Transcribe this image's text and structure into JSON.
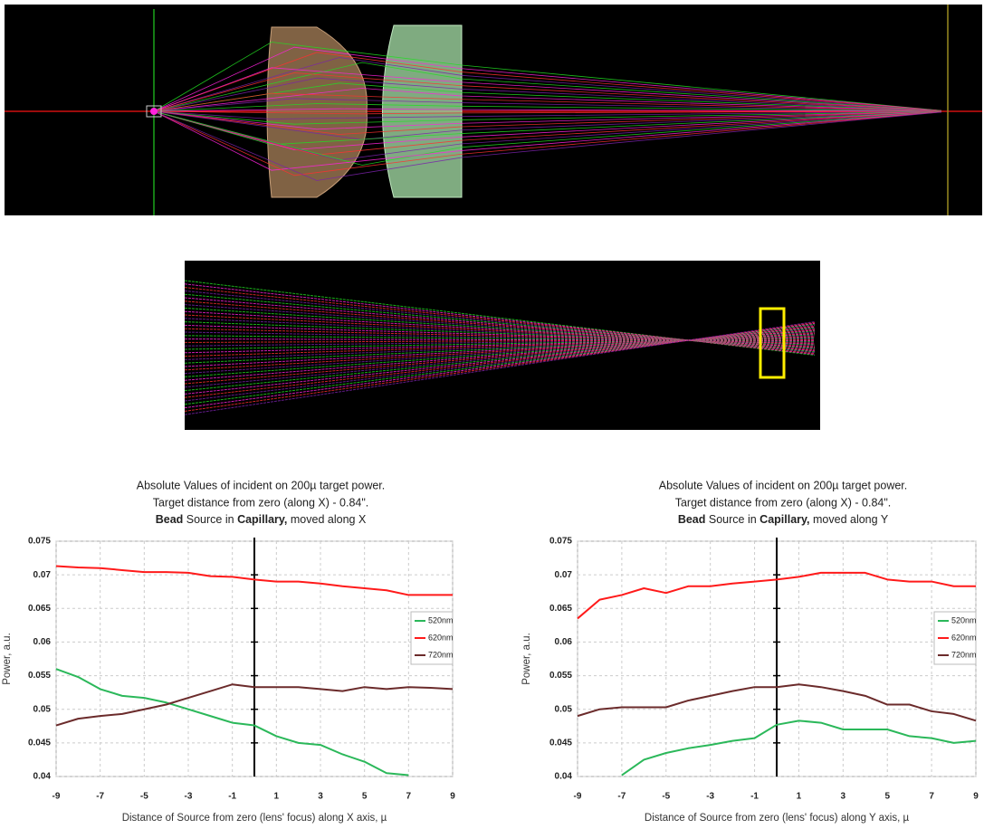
{
  "chart_data": [
    {
      "type": "line",
      "title": [
        "Absolute Values of incident on 200µ target power.",
        "Target distance from zero (along X) - 0.84\".",
        [
          {
            "text": "Bead",
            "bold": true
          },
          {
            "text": " Source in "
          },
          {
            "text": "Capillary,",
            "bold": true
          },
          {
            "text": " moved along X"
          }
        ]
      ],
      "xlabel": "Distance of Source from zero (lens' focus) along X axis, µ",
      "ylabel": "Power, a.u.",
      "x": [
        -9,
        -8,
        -7,
        -6,
        -5,
        -4,
        -3,
        -2,
        -1,
        0,
        1,
        2,
        3,
        4,
        5,
        6,
        7,
        8,
        9
      ],
      "series": [
        {
          "name": "520nm",
          "color": "#2bb85a",
          "values": [
            0.056,
            0.0548,
            0.053,
            0.052,
            0.0517,
            0.051,
            0.05,
            0.049,
            0.048,
            0.0476,
            0.046,
            0.045,
            0.0447,
            0.0433,
            0.0422,
            0.0405,
            0.0402,
            null,
            null
          ]
        },
        {
          "name": "620nm",
          "color": "#ff1a1a",
          "values": [
            0.0713,
            0.0711,
            0.071,
            0.0707,
            0.0704,
            0.0704,
            0.0703,
            0.0698,
            0.0697,
            0.0693,
            0.069,
            0.069,
            0.0687,
            0.0683,
            0.068,
            0.0677,
            0.067,
            0.067,
            0.067
          ]
        },
        {
          "name": "720nm",
          "color": "#6b2b2b",
          "values": [
            0.0476,
            0.0486,
            0.049,
            0.0493,
            0.05,
            0.0507,
            0.0517,
            0.0527,
            0.0537,
            0.0533,
            0.0533,
            0.0533,
            0.053,
            0.0527,
            0.0533,
            0.053,
            0.0533,
            0.0532,
            0.053
          ]
        }
      ],
      "xlim": [
        -9,
        9
      ],
      "xticks": [
        -9,
        -7,
        -5,
        -3,
        -1,
        1,
        3,
        5,
        7,
        9
      ],
      "ylim": [
        0.04,
        0.075
      ],
      "yticks": [
        0.04,
        0.045,
        0.05,
        0.055,
        0.06,
        0.065,
        0.07,
        0.075
      ],
      "grid": true,
      "legend": "right"
    },
    {
      "type": "line",
      "title": [
        "Absolute Values of incident on 200µ target power.",
        "Target distance from zero (along X) - 0.84\".",
        [
          {
            "text": "Bead",
            "bold": true
          },
          {
            "text": " Source in "
          },
          {
            "text": "Capillary,",
            "bold": true
          },
          {
            "text": " moved along Y"
          }
        ]
      ],
      "xlabel": "Distance of Source from zero (lens' focus) along  Y axis, µ",
      "ylabel": "Power, a.u.",
      "x": [
        -9,
        -8,
        -7,
        -6,
        -5,
        -4,
        -3,
        -2,
        -1,
        0,
        1,
        2,
        3,
        4,
        5,
        6,
        7,
        8,
        9
      ],
      "series": [
        {
          "name": "520nm",
          "color": "#2bb85a",
          "values": [
            null,
            null,
            0.0402,
            0.0425,
            0.0435,
            0.0442,
            0.0447,
            0.0453,
            0.0457,
            0.0477,
            0.0483,
            0.048,
            0.047,
            0.047,
            0.047,
            0.046,
            0.0457,
            0.045,
            0.0453
          ]
        },
        {
          "name": "620nm",
          "color": "#ff1a1a",
          "values": [
            0.0635,
            0.0663,
            0.067,
            0.068,
            0.0673,
            0.0683,
            0.0683,
            0.0687,
            0.069,
            0.0693,
            0.0697,
            0.0703,
            0.0703,
            0.0703,
            0.0693,
            0.069,
            0.069,
            0.0683,
            0.0683
          ]
        },
        {
          "name": "720nm",
          "color": "#6b2b2b",
          "values": [
            0.049,
            0.05,
            0.0503,
            0.0503,
            0.0503,
            0.0513,
            0.052,
            0.0527,
            0.0533,
            0.0533,
            0.0537,
            0.0533,
            0.0527,
            0.052,
            0.0507,
            0.0507,
            0.0497,
            0.0493,
            0.0483
          ]
        }
      ],
      "xlim": [
        -9,
        9
      ],
      "xticks": [
        -9,
        -7,
        -5,
        -3,
        -1,
        1,
        3,
        5,
        7,
        9
      ],
      "ylim": [
        0.04,
        0.075
      ],
      "yticks": [
        0.04,
        0.045,
        0.05,
        0.055,
        0.06,
        0.065,
        0.07,
        0.075
      ],
      "grid": true,
      "legend": "right"
    }
  ]
}
